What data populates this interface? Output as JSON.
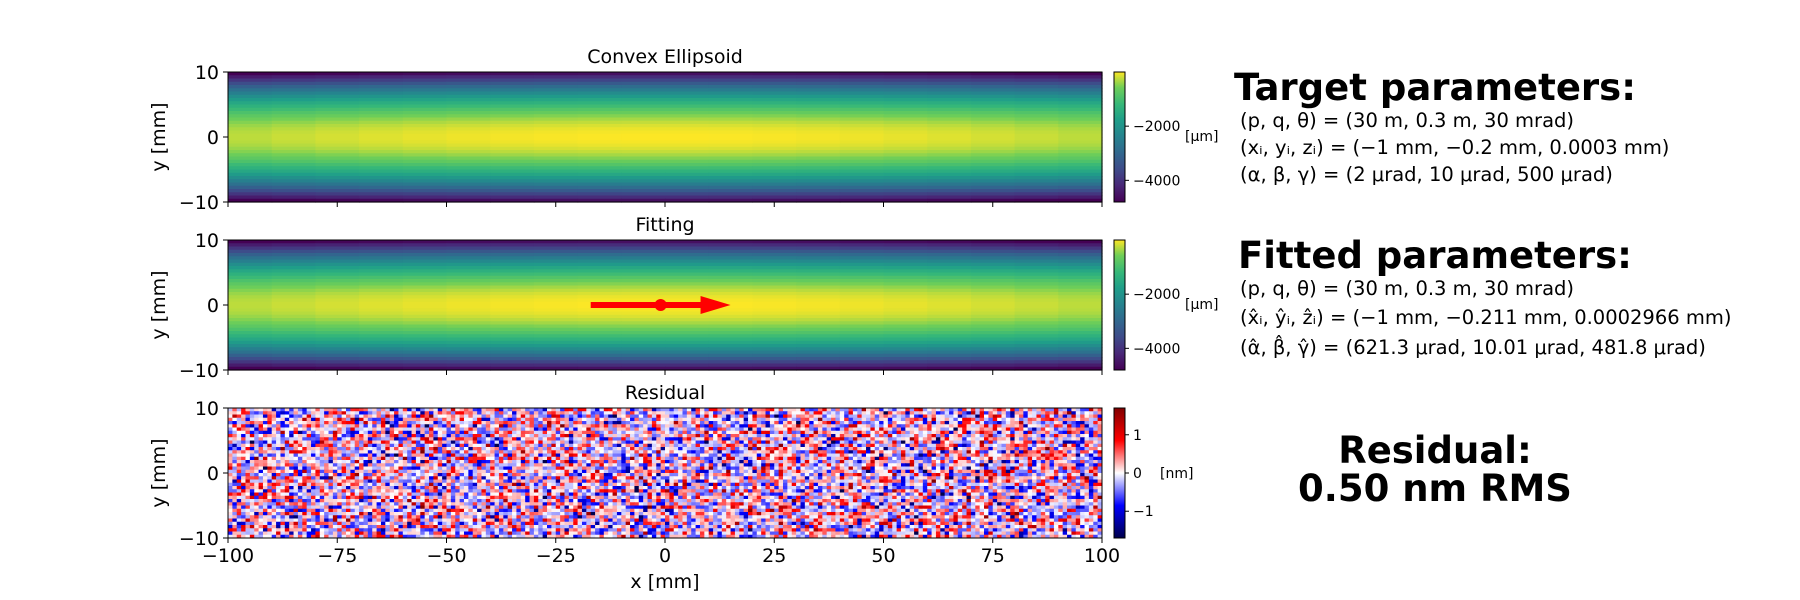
{
  "chart_data": [
    {
      "type": "heatmap",
      "title": "Convex Ellipsoid",
      "ylabel": "y [mm]",
      "xlabel": "",
      "xlim": [
        -100,
        100
      ],
      "ylim": [
        -10,
        10
      ],
      "x_ticks": [
        -100,
        -75,
        -50,
        -25,
        0,
        25,
        50,
        75,
        100
      ],
      "y_ticks": [
        -10,
        0,
        10
      ],
      "show_x_tick_labels": false,
      "colormap": "viridis",
      "surface": {
        "form": "sag_quadratic_in_y",
        "center_value": 0,
        "edge_value": -4800,
        "x_tilt": -300
      },
      "colorbar": {
        "label": "[µm]",
        "range": [
          -4800,
          0
        ],
        "ticks": [
          -4000,
          -2000
        ]
      }
    },
    {
      "type": "heatmap",
      "title": "Fitting",
      "ylabel": "y [mm]",
      "xlabel": "",
      "xlim": [
        -100,
        100
      ],
      "ylim": [
        -10,
        10
      ],
      "x_ticks": [
        -100,
        -75,
        -50,
        -25,
        0,
        25,
        50,
        75,
        100
      ],
      "y_ticks": [
        -10,
        0,
        10
      ],
      "show_x_tick_labels": false,
      "colormap": "viridis",
      "surface": {
        "form": "sag_quadratic_in_y",
        "center_value": 0,
        "edge_value": -4800,
        "x_tilt": -300
      },
      "colorbar": {
        "label": "[µm]",
        "range": [
          -4800,
          0
        ],
        "ticks": [
          -4000,
          -2000
        ]
      },
      "annotation": {
        "type": "arrow",
        "color": "#ff0000",
        "start": [
          -17,
          0
        ],
        "end": [
          15,
          0
        ],
        "marker": [
          -1,
          0
        ]
      }
    },
    {
      "type": "heatmap",
      "title": "Residual",
      "ylabel": "y [mm]",
      "xlabel": "x [mm]",
      "xlim": [
        -100,
        100
      ],
      "ylim": [
        -10,
        10
      ],
      "x_ticks": [
        -100,
        -75,
        -50,
        -25,
        0,
        25,
        50,
        75,
        100
      ],
      "y_ticks": [
        -10,
        0,
        10
      ],
      "show_x_tick_labels": true,
      "colormap": "seismic",
      "surface": {
        "form": "random_noise",
        "rms": 0.5,
        "cols": 200,
        "rows": 40
      },
      "colorbar": {
        "label": "[nm]",
        "range": [
          -1.7,
          1.7
        ],
        "ticks": [
          -1,
          0,
          1
        ]
      }
    }
  ],
  "side_panel": {
    "target_heading": "Target parameters:",
    "target_lines": [
      "(p, q, θ) = (30 m, 0.3 m, 30 mrad)",
      "(xᵢ, yᵢ, zᵢ) = (−1 mm, −0.2 mm, 0.0003 mm)",
      "(α, β, γ) = (2 μrad, 10 μrad, 500 μrad)"
    ],
    "fitted_heading": "Fitted parameters:",
    "fitted_lines": [
      "(p, q, θ) = (30 m, 0.3 m, 30 mrad)",
      "(x̂ᵢ, ŷᵢ, ẑᵢ) = (−1 mm, −0.211 mm, 0.0002966 mm)",
      "(α̂, β̂, γ̂) = (621.3 μrad, 10.01 μrad, 481.8 μrad)"
    ],
    "residual_line1": "Residual:",
    "residual_line2": "0.50 nm RMS"
  }
}
